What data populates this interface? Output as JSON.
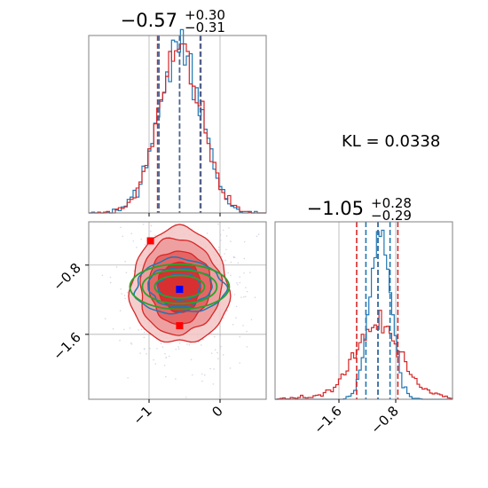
{
  "colors": {
    "red": "#d62728",
    "blue": "#1f77b4",
    "green": "#2ca02c",
    "grid": "#b0b0b0",
    "frame": "#808080",
    "marker_red": "#ff0000",
    "marker_blue": "#0000ff"
  },
  "annotation": {
    "kl_text": "KL = 0.0338"
  },
  "chart_data": [
    {
      "type": "histogram",
      "panel": "top-left",
      "title": {
        "main": "−0.57",
        "sup": "+0.30",
        "sub": "−0.31"
      },
      "xlim": [
        -1.85,
        0.65
      ],
      "grid": true,
      "series": [
        {
          "name": "",
          "color": "#d62728",
          "quantiles": [
            -0.88,
            -0.57,
            -0.27
          ]
        },
        {
          "name": "",
          "color": "#1f77b4",
          "quantiles": [
            -0.86,
            -0.57,
            -0.28
          ]
        }
      ],
      "peak": -0.57,
      "sigma": 0.3
    },
    {
      "type": "histogram",
      "panel": "bottom-right",
      "title": {
        "main": "−1.05",
        "sup": "+0.28",
        "sub": "−0.29"
      },
      "xlim": [
        -2.5,
        0.0
      ],
      "xticks": [
        -1.6,
        -0.8
      ],
      "xtick_labels": [
        "−1.6",
        "−0.8"
      ],
      "grid": true,
      "series": [
        {
          "name": "",
          "color": "#d62728",
          "quantiles": [
            -1.35,
            -1.05,
            -0.77
          ],
          "sigma": 0.3,
          "peak": -1.05
        },
        {
          "name": "",
          "color": "#1f77b4",
          "quantiles": [
            -1.22,
            -1.05,
            -0.88
          ],
          "sigma": 0.15,
          "peak": -1.02
        }
      ]
    },
    {
      "type": "contour",
      "panel": "bottom-left",
      "xlim": [
        -1.85,
        0.65
      ],
      "ylim": [
        -2.35,
        -0.3
      ],
      "xticks": [
        -1,
        0
      ],
      "xtick_labels": [
        "−1",
        "0"
      ],
      "yticks": [
        -0.8,
        -1.6
      ],
      "ytick_labels": [
        "−0.8",
        "−1.6"
      ],
      "grid": true,
      "center": [
        -0.57,
        -1.05
      ],
      "red_contour_sigma": [
        0.3,
        0.29
      ],
      "blue_contour_sigma": [
        0.3,
        0.15
      ],
      "green_contour_sigma": [
        0.35,
        0.13
      ],
      "markers": [
        {
          "color": "#ff0000",
          "x": -0.98,
          "y": -0.52
        },
        {
          "color": "#ff0000",
          "x": -0.57,
          "y": -1.5
        },
        {
          "color": "#0000ff",
          "x": -0.57,
          "y": -1.08
        }
      ]
    }
  ]
}
